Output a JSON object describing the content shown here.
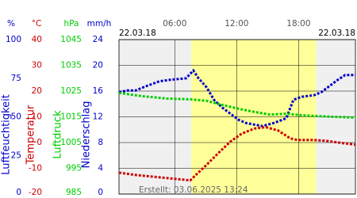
{
  "chart_data": {
    "type": "line",
    "date_left": "22.03.18",
    "date_right": "22.03.18",
    "created": "Erstellt: 03.06.2025 13:24",
    "xlim": [
      0.6,
      23.5
    ],
    "xticks": [
      {
        "value": 6,
        "label": "06:00"
      },
      {
        "value": 12,
        "label": "12:00"
      },
      {
        "value": 18,
        "label": "18:00"
      }
    ],
    "daylight": [
      7.6,
      19.7
    ],
    "grid": true,
    "axes": [
      {
        "unit": "%",
        "name": "Luftfeuchtigkeit",
        "color": "#0000cc",
        "ylim": [
          0,
          100
        ],
        "yticks": [
          100,
          75,
          50,
          25,
          0
        ]
      },
      {
        "unit": "°C",
        "name": "Temperatur",
        "color": "#cc0000",
        "ylim": [
          -20,
          40
        ],
        "yticks": [
          40,
          30,
          20,
          10,
          0,
          -10,
          -20
        ]
      },
      {
        "unit": "hPa",
        "name": "Luftdruck",
        "color": "#00cc00",
        "ylim": [
          985,
          1045
        ],
        "yticks": [
          1045,
          1035,
          1025,
          1015,
          1005,
          995,
          985
        ]
      },
      {
        "unit": "mm/h",
        "name": "Niederschlag",
        "color": "#0000cc",
        "ylim": [
          0,
          24
        ],
        "yticks": [
          24,
          20,
          16,
          12,
          8,
          4,
          0
        ]
      }
    ],
    "series": [
      {
        "axis": 0,
        "color": "#0000cc",
        "x": [
          0.6,
          1.4,
          2.2,
          3.3,
          4.5,
          5.6,
          7.1,
          7.8,
          8.3,
          9.1,
          9.8,
          10.6,
          11.4,
          12.2,
          12.9,
          13.7,
          14.5,
          15.6,
          16.8,
          17.5,
          18.3,
          19.5,
          20.2,
          21.0,
          21.8,
          22.5,
          23.5
        ],
        "values": [
          66,
          67,
          67,
          70,
          73,
          74,
          75,
          80,
          75,
          69,
          61,
          56,
          52,
          48,
          46,
          45,
          44,
          46,
          49,
          61,
          63,
          64,
          66,
          70,
          74,
          77,
          77
        ]
      },
      {
        "axis": 1,
        "color": "#cc0000",
        "x": [
          0.6,
          2.2,
          4.5,
          6.8,
          7.5,
          8.2,
          9.1,
          10.2,
          11.4,
          12.5,
          13.7,
          14.8,
          16.0,
          17.2,
          17.9,
          19.5,
          20.6,
          22.2,
          23.5
        ],
        "values": [
          -11.7,
          -12.6,
          -13.5,
          -14.4,
          -14.7,
          -12,
          -8.6,
          -4.2,
          0.4,
          3.5,
          5.4,
          6,
          4.7,
          1.6,
          1,
          1,
          0.7,
          -0.2,
          -0.8
        ]
      },
      {
        "axis": 2,
        "color": "#00cc00",
        "x": [
          0.6,
          2.9,
          5.2,
          7.5,
          9.1,
          10.6,
          12.2,
          13.7,
          15.2,
          16.8,
          18.3,
          19.8,
          21.4,
          23.5
        ],
        "values": [
          1024.3,
          1023,
          1022.1,
          1021.8,
          1021.2,
          1019.6,
          1018.1,
          1016.9,
          1015.9,
          1016.2,
          1015.6,
          1015.3,
          1015,
          1014.7
        ]
      }
    ]
  }
}
